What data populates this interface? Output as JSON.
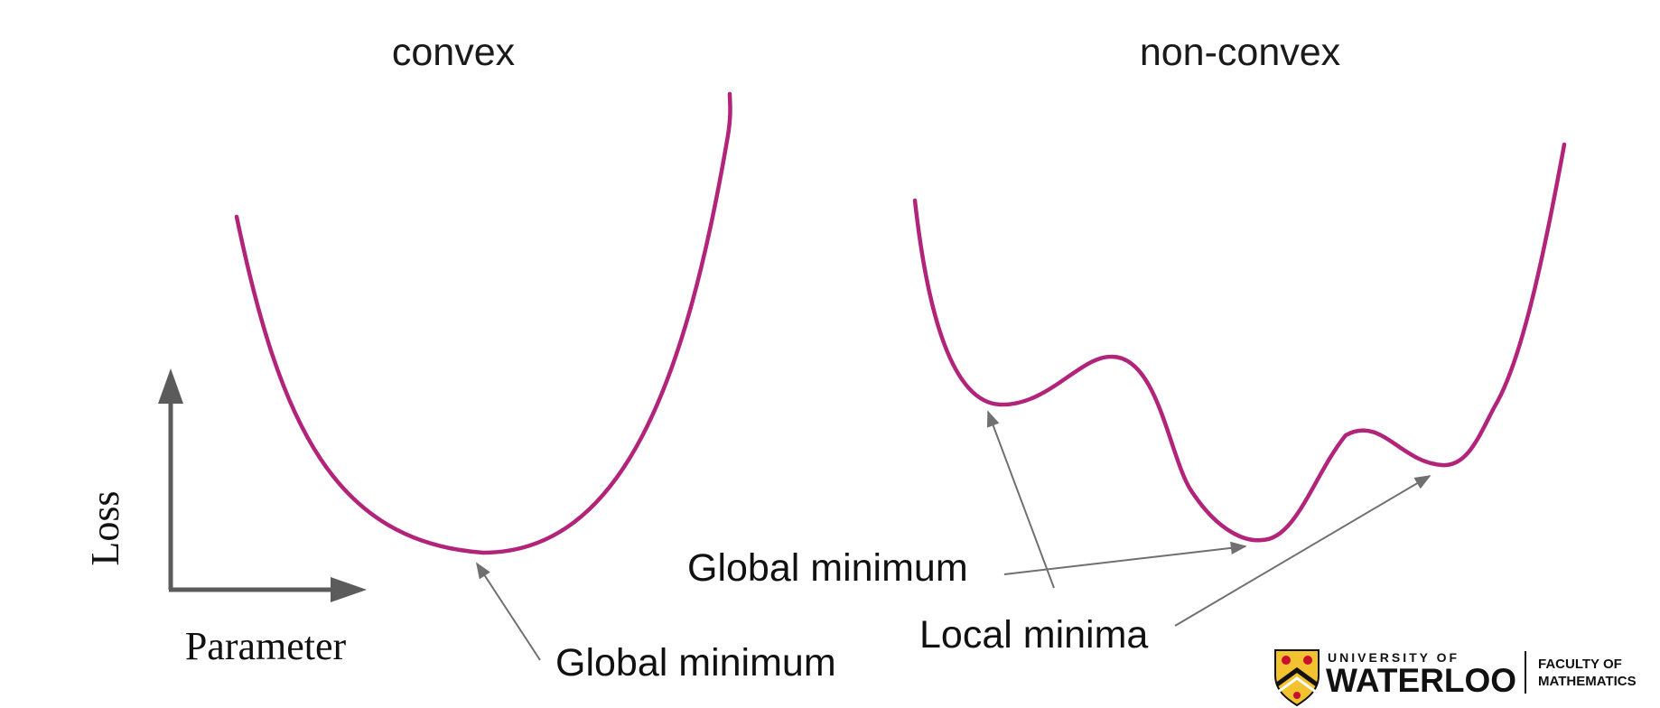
{
  "panels": {
    "convex": {
      "title": "convex",
      "annotation": "Global minimum"
    },
    "nonconvex": {
      "title": "non-convex",
      "global_annotation": "Global minimum",
      "local_annotation": "Local minima"
    }
  },
  "axes": {
    "y_label": "Loss",
    "x_label": "Parameter"
  },
  "logo": {
    "university_line": "UNIVERSITY OF",
    "name": "WATERLOO",
    "faculty_line1": "FACULTY OF",
    "faculty_line2": "MATHEMATICS"
  },
  "colors": {
    "curve": "#b1247a",
    "pointer": "#707070",
    "axis": "#5b5b5b",
    "shield_gold": "#f2c230",
    "shield_red": "#c8102e"
  }
}
